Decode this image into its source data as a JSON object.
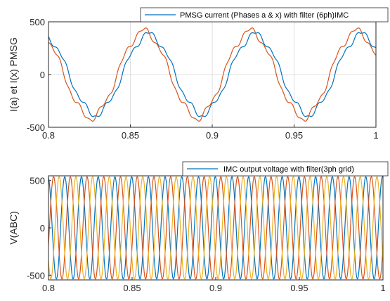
{
  "chart_data": [
    {
      "type": "line",
      "xlabel": "",
      "ylabel": "I(a) et I(x) PMSG",
      "xlim": [
        0.8,
        1.0
      ],
      "ylim": [
        -500,
        500
      ],
      "xticks": [
        0.8,
        0.85,
        0.9,
        0.95,
        1.0
      ],
      "xtick_labels": [
        "0.8",
        "0.85",
        "0.9",
        "0.95",
        "1"
      ],
      "yticks": [
        -500,
        0,
        500
      ],
      "ytick_labels": [
        "-500",
        "0",
        "500"
      ],
      "grid": true,
      "legend": {
        "position": "top-right",
        "entries": [
          "PMSG current (Phases a & x) with filter (6ph)IMC"
        ]
      },
      "fundamental_hz": 15.4,
      "series": [
        {
          "name": "PMSG current (Phases a & x) with filter (6ph)IMC",
          "color": "#0072bd",
          "amplitude": 380,
          "phase_deg": -5
        },
        {
          "color": "#d95319",
          "amplitude": 410,
          "phase_deg": 12
        }
      ]
    },
    {
      "type": "line",
      "xlabel": "",
      "ylabel": "V(ABC)",
      "xlim": [
        0.8,
        1.0
      ],
      "ylim": [
        -550,
        550
      ],
      "xticks": [
        0.8,
        0.85,
        0.9,
        0.95,
        1.0
      ],
      "xtick_labels": [
        "0.8",
        "0.85",
        "0.9",
        "0.95",
        "1"
      ],
      "yticks": [
        -500,
        0,
        500
      ],
      "ytick_labels": [
        "-500",
        "0",
        "500"
      ],
      "grid": false,
      "legend": {
        "position": "top-right",
        "entries": [
          "IMC output voltage with filter(3ph grid)"
        ]
      },
      "fundamental_hz": 100,
      "series": [
        {
          "name": "IMC output voltage with filter(3ph grid)",
          "color": "#0072bd",
          "amplitude": 540,
          "phase_deg": 100
        },
        {
          "color": "#d95319",
          "amplitude": 540,
          "phase_deg": -20
        },
        {
          "color": "#edb120",
          "amplitude": 540,
          "phase_deg": 220
        }
      ]
    }
  ]
}
